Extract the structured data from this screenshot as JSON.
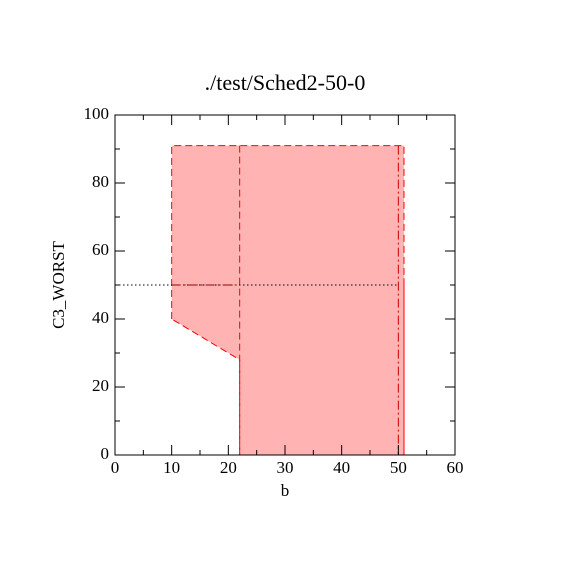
{
  "chart_data": {
    "type": "region",
    "title": "./test/Sched2-50-0",
    "xlabel": "b",
    "ylabel": "C3_WORST",
    "xlim": [
      0,
      60
    ],
    "ylim": [
      0,
      100
    ],
    "xticks": [
      0,
      10,
      20,
      30,
      40,
      50,
      60
    ],
    "yticks": [
      0,
      20,
      40,
      60,
      80,
      100
    ],
    "xminorticks": [
      5,
      15,
      25,
      35,
      45,
      55
    ],
    "yminorticks": [
      10,
      30,
      50,
      70,
      90
    ],
    "series": [
      {
        "kind": "polygon",
        "color": "#ff0000",
        "fill": "#ffb3b3",
        "style": "dashed",
        "x": [
          10,
          10,
          51,
          51,
          22,
          22
        ],
        "values": [
          40,
          91,
          91,
          0,
          0,
          28
        ]
      },
      {
        "kind": "line",
        "color": "#ff0000",
        "style": "dashed",
        "x": [
          22,
          22
        ],
        "values": [
          91,
          0
        ]
      },
      {
        "kind": "line",
        "color": "#cc0000",
        "style": "dashdot",
        "x": [
          50,
          50
        ],
        "values": [
          91,
          0
        ]
      },
      {
        "kind": "line",
        "color": "#ff0000",
        "style": "solid",
        "x": [
          51,
          51
        ],
        "values": [
          52,
          0
        ]
      },
      {
        "kind": "line",
        "color": "#000000",
        "style": "dotted",
        "x": [
          0,
          50
        ],
        "values": [
          50,
          50
        ]
      },
      {
        "kind": "line",
        "color": "#990000",
        "style": "dashdot",
        "x": [
          10,
          22
        ],
        "values": [
          50,
          50
        ]
      }
    ]
  }
}
